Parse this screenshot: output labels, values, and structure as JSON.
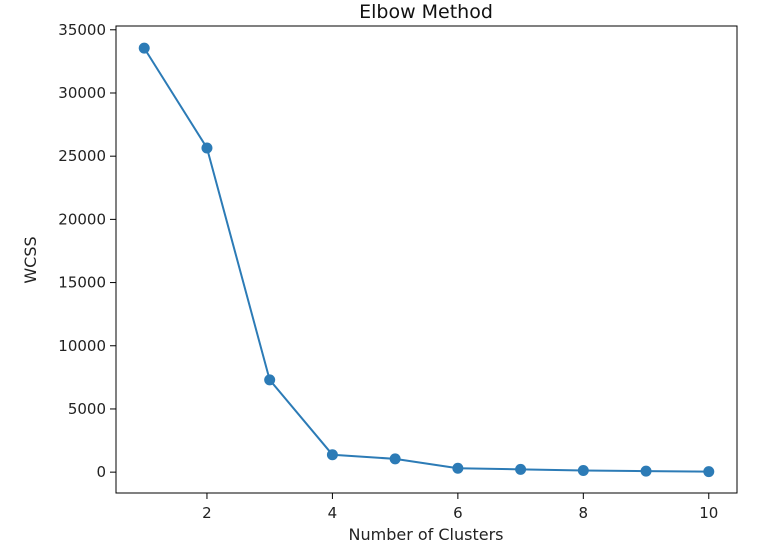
{
  "chart_data": {
    "type": "line",
    "title": "Elbow Method",
    "xlabel": "Number of Clusters",
    "ylabel": "WCSS",
    "x": [
      1,
      2,
      3,
      4,
      5,
      6,
      7,
      8,
      9,
      10
    ],
    "series": [
      {
        "values": [
          33550,
          25650,
          7300,
          1380,
          1050,
          310,
          220,
          130,
          80,
          40
        ]
      }
    ],
    "xlim": [
      0.55,
      10.45
    ],
    "ylim": [
      -1650,
      35300
    ],
    "xticks": [
      2,
      4,
      6,
      8,
      10
    ],
    "yticks": [
      0,
      5000,
      10000,
      15000,
      20000,
      25000,
      30000,
      35000
    ],
    "grid": false,
    "legend": "none",
    "marker": "circle",
    "color": "#2c7bb6"
  }
}
